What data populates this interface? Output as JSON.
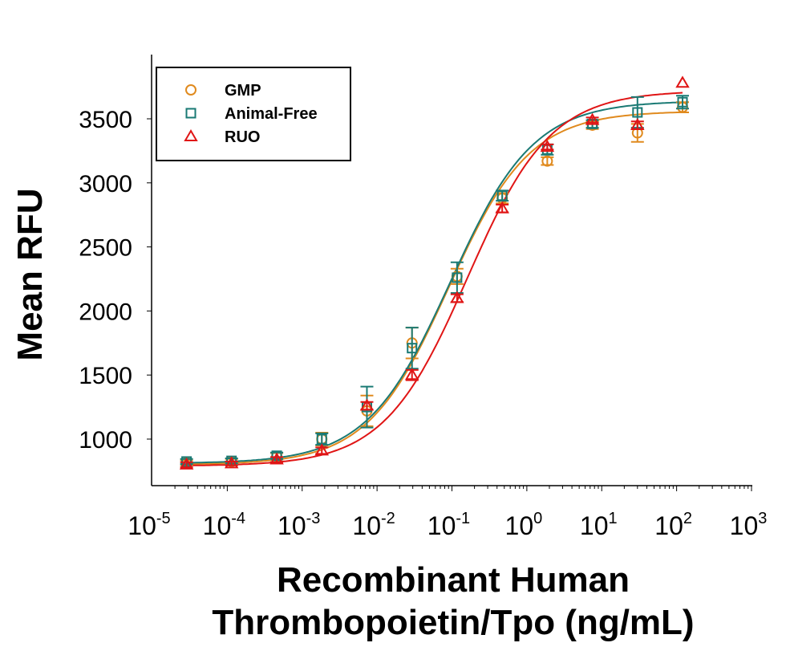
{
  "chart_data": {
    "type": "scatter",
    "title": "",
    "xlabel_lines": [
      "Recombinant Human",
      "Thrombopoietin/Tpo (ng/mL)"
    ],
    "ylabel": "Mean RFU",
    "xscale": "log",
    "xlim": [
      1e-05,
      1000
    ],
    "ylim": [
      690,
      3900
    ],
    "x_ticks": [
      {
        "base": "10",
        "exp": "-5",
        "value": 1e-05
      },
      {
        "base": "10",
        "exp": "-4",
        "value": 0.0001
      },
      {
        "base": "10",
        "exp": "-3",
        "value": 0.001
      },
      {
        "base": "10",
        "exp": "-2",
        "value": 0.01
      },
      {
        "base": "10",
        "exp": "-1",
        "value": 0.1
      },
      {
        "base": "10",
        "exp": "0",
        "value": 1
      },
      {
        "base": "10",
        "exp": "1",
        "value": 10
      },
      {
        "base": "10",
        "exp": "2",
        "value": 100
      },
      {
        "base": "10",
        "exp": "3",
        "value": 1000
      }
    ],
    "y_ticks": [
      1000,
      1500,
      2000,
      2500,
      3000,
      3500
    ],
    "grid": false,
    "legend_position": "top-left",
    "x": [
      2.86e-05,
      0.000114,
      0.000458,
      0.00183,
      0.00732,
      0.0293,
      0.117,
      0.469,
      1.875,
      7.5,
      30,
      120
    ],
    "series": [
      {
        "name": "GMP",
        "marker": "circle",
        "color": "#E08A1E",
        "values": [
          815,
          825,
          865,
          1000,
          1220,
          1750,
          2270,
          2880,
          3170,
          3450,
          3390,
          3590
        ],
        "errors": [
          20,
          20,
          25,
          50,
          120,
          120,
          60,
          40,
          30,
          30,
          70,
          40
        ],
        "fit": {
          "bottom": 800,
          "top": 3560,
          "ec50": 0.09,
          "hill": 0.8
        }
      },
      {
        "name": "Animal-Free",
        "marker": "square",
        "color": "#1A7A74",
        "values": [
          825,
          830,
          870,
          1000,
          1250,
          1710,
          2260,
          2900,
          3260,
          3460,
          3550,
          3630
        ],
        "errors": [
          20,
          20,
          25,
          45,
          160,
          160,
          120,
          40,
          40,
          30,
          120,
          50
        ],
        "fit": {
          "bottom": 810,
          "top": 3640,
          "ec50": 0.095,
          "hill": 0.78
        }
      },
      {
        "name": "RUO",
        "marker": "triangle",
        "color": "#E01515",
        "values": [
          800,
          810,
          840,
          910,
          1260,
          1500,
          2100,
          2800,
          3280,
          3490,
          3450,
          3780
        ],
        "errors": [
          20,
          15,
          20,
          25,
          30,
          40,
          30,
          30,
          20,
          20,
          30,
          0
        ],
        "fit": {
          "bottom": 790,
          "top": 3720,
          "ec50": 0.16,
          "hill": 0.78
        }
      }
    ]
  }
}
